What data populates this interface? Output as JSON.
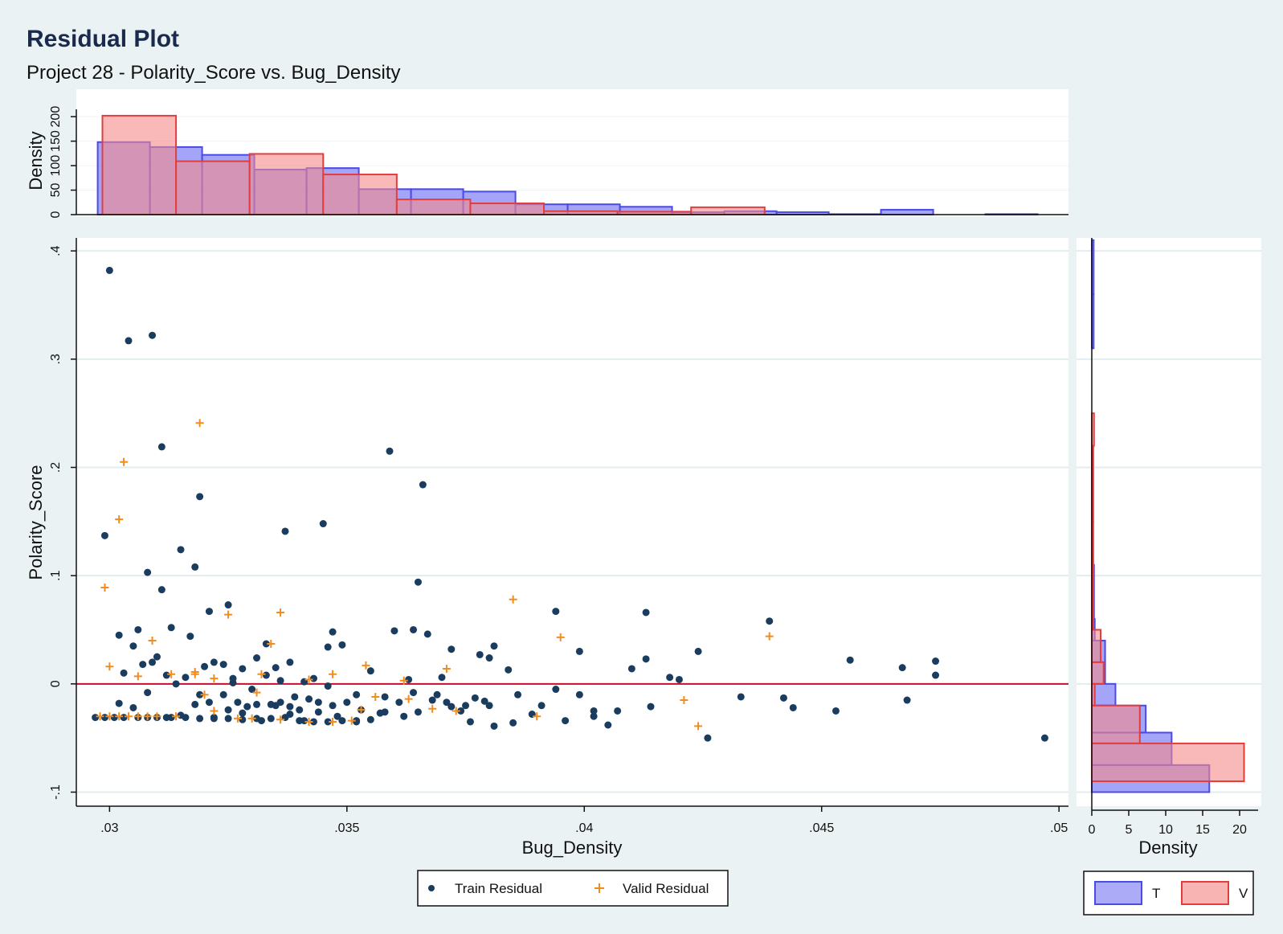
{
  "title": "Residual Plot",
  "subtitle": "Project 28 - Polarity_Score vs. Bug_Density",
  "colors": {
    "background": "#eaf2f3",
    "train_point": "#1a3c5e",
    "valid_point": "#f28c1e",
    "hist_train_fill": "#7e7ef5",
    "hist_train_edge": "#4b4be6",
    "hist_valid_fill": "#f58a8a",
    "hist_valid_edge": "#e23e3e",
    "zero_line": "#c8102e"
  },
  "chart_data": {
    "type": "scatter",
    "title": "Residual Plot",
    "subtitle": "Project 28 - Polarity_Score vs. Bug_Density",
    "xlabel": "Bug_Density",
    "ylabel": "Polarity_Score",
    "xlim": [
      0.0293,
      0.0502
    ],
    "ylim": [
      -0.113,
      0.412
    ],
    "x_ticks": [
      0.03,
      0.035,
      0.04,
      0.045,
      0.05
    ],
    "x_tick_labels": [
      ".03",
      ".035",
      ".04",
      ".045",
      ".05"
    ],
    "y_ticks": [
      -0.1,
      0,
      0.1,
      0.2,
      0.3,
      0.4
    ],
    "y_tick_labels": [
      "-.1",
      "0",
      ".1",
      ".2",
      ".3",
      ".4"
    ],
    "grid": true,
    "reference_line_y": 0,
    "series": [
      {
        "name": "Train Residual",
        "marker": "circle",
        "points": [
          [
            0.03,
            0.382
          ],
          [
            0.0304,
            0.317
          ],
          [
            0.0309,
            0.322
          ],
          [
            0.0311,
            0.219
          ],
          [
            0.0319,
            0.173
          ],
          [
            0.0299,
            0.137
          ],
          [
            0.0315,
            0.124
          ],
          [
            0.0318,
            0.108
          ],
          [
            0.0308,
            0.103
          ],
          [
            0.0311,
            0.087
          ],
          [
            0.0359,
            0.215
          ],
          [
            0.0366,
            0.184
          ],
          [
            0.0345,
            0.148
          ],
          [
            0.0337,
            0.141
          ],
          [
            0.0365,
            0.094
          ],
          [
            0.0325,
            0.073
          ],
          [
            0.0321,
            0.067
          ],
          [
            0.0306,
            0.05
          ],
          [
            0.0302,
            0.045
          ],
          [
            0.0313,
            0.052
          ],
          [
            0.0317,
            0.044
          ],
          [
            0.031,
            0.025
          ],
          [
            0.0305,
            0.035
          ],
          [
            0.0303,
            0.01
          ],
          [
            0.0307,
            0.018
          ],
          [
            0.0309,
            0.02
          ],
          [
            0.0312,
            0.008
          ],
          [
            0.0314,
            0.0
          ],
          [
            0.0316,
            0.006
          ],
          [
            0.032,
            0.016
          ],
          [
            0.0322,
            0.02
          ],
          [
            0.0324,
            0.018
          ],
          [
            0.0326,
            0.001
          ],
          [
            0.0328,
            0.014
          ],
          [
            0.0331,
            0.024
          ],
          [
            0.0333,
            0.037
          ],
          [
            0.0335,
            0.015
          ],
          [
            0.0338,
            0.02
          ],
          [
            0.0341,
            0.002
          ],
          [
            0.0343,
            0.005
          ],
          [
            0.0346,
            0.034
          ],
          [
            0.0347,
            0.048
          ],
          [
            0.0349,
            0.036
          ],
          [
            0.0346,
            -0.002
          ],
          [
            0.0352,
            -0.01
          ],
          [
            0.0355,
            0.012
          ],
          [
            0.0358,
            -0.012
          ],
          [
            0.036,
            0.049
          ],
          [
            0.0363,
            0.004
          ],
          [
            0.0364,
            0.05
          ],
          [
            0.0367,
            0.046
          ],
          [
            0.037,
            0.006
          ],
          [
            0.0372,
            0.032
          ],
          [
            0.0375,
            -0.02
          ],
          [
            0.0378,
            0.027
          ],
          [
            0.038,
            0.024
          ],
          [
            0.0381,
            0.035
          ],
          [
            0.0384,
            0.013
          ],
          [
            0.038,
            -0.02
          ],
          [
            0.0394,
            0.067
          ],
          [
            0.0399,
            0.03
          ],
          [
            0.0399,
            -0.01
          ],
          [
            0.0413,
            0.066
          ],
          [
            0.0413,
            0.023
          ],
          [
            0.041,
            0.014
          ],
          [
            0.0424,
            0.03
          ],
          [
            0.042,
            0.004
          ],
          [
            0.0439,
            0.058
          ],
          [
            0.0456,
            0.022
          ],
          [
            0.0467,
            0.015
          ],
          [
            0.0474,
            0.021
          ],
          [
            0.0474,
            0.008
          ],
          [
            0.0433,
            -0.012
          ],
          [
            0.0442,
            -0.013
          ],
          [
            0.0444,
            -0.022
          ],
          [
            0.0453,
            -0.025
          ],
          [
            0.0468,
            -0.015
          ],
          [
            0.0414,
            -0.021
          ],
          [
            0.0407,
            -0.025
          ],
          [
            0.0402,
            -0.03
          ],
          [
            0.0405,
            -0.038
          ],
          [
            0.0396,
            -0.034
          ],
          [
            0.0389,
            -0.028
          ],
          [
            0.0385,
            -0.036
          ],
          [
            0.0381,
            -0.039
          ],
          [
            0.0376,
            -0.035
          ],
          [
            0.0372,
            -0.021
          ],
          [
            0.0369,
            -0.01
          ],
          [
            0.0365,
            -0.026
          ],
          [
            0.0362,
            -0.03
          ],
          [
            0.0358,
            -0.026
          ],
          [
            0.0355,
            -0.033
          ],
          [
            0.0352,
            -0.035
          ],
          [
            0.0348,
            -0.03
          ],
          [
            0.0344,
            -0.026
          ],
          [
            0.0341,
            -0.034
          ],
          [
            0.0338,
            -0.028
          ],
          [
            0.0335,
            -0.02
          ],
          [
            0.0332,
            -0.034
          ],
          [
            0.0328,
            -0.027
          ],
          [
            0.0325,
            -0.024
          ],
          [
            0.0322,
            -0.031
          ],
          [
            0.0318,
            -0.019
          ],
          [
            0.0315,
            -0.029
          ],
          [
            0.0312,
            -0.031
          ],
          [
            0.0308,
            -0.008
          ],
          [
            0.0305,
            -0.022
          ],
          [
            0.0302,
            -0.018
          ],
          [
            0.0297,
            -0.031
          ],
          [
            0.0299,
            -0.031
          ],
          [
            0.0301,
            -0.031
          ],
          [
            0.0303,
            -0.031
          ],
          [
            0.0306,
            -0.031
          ],
          [
            0.0308,
            -0.031
          ],
          [
            0.031,
            -0.031
          ],
          [
            0.0313,
            -0.031
          ],
          [
            0.0316,
            -0.031
          ],
          [
            0.0319,
            -0.032
          ],
          [
            0.0322,
            -0.032
          ],
          [
            0.0325,
            -0.032
          ],
          [
            0.0328,
            -0.033
          ],
          [
            0.0331,
            -0.032
          ],
          [
            0.0334,
            -0.032
          ],
          [
            0.0337,
            -0.031
          ],
          [
            0.034,
            -0.034
          ],
          [
            0.0343,
            -0.035
          ],
          [
            0.0346,
            -0.035
          ],
          [
            0.0349,
            -0.034
          ],
          [
            0.0352,
            -0.034
          ],
          [
            0.0326,
            0.005
          ],
          [
            0.033,
            -0.005
          ],
          [
            0.0333,
            0.008
          ],
          [
            0.0336,
            0.003
          ],
          [
            0.0339,
            -0.012
          ],
          [
            0.0342,
            -0.014
          ],
          [
            0.0319,
            -0.01
          ],
          [
            0.0321,
            -0.017
          ],
          [
            0.0324,
            -0.01
          ],
          [
            0.0327,
            -0.017
          ],
          [
            0.0329,
            -0.021
          ],
          [
            0.0331,
            -0.019
          ],
          [
            0.0334,
            -0.019
          ],
          [
            0.0336,
            -0.017
          ],
          [
            0.0338,
            -0.021
          ],
          [
            0.034,
            -0.024
          ],
          [
            0.0344,
            -0.017
          ],
          [
            0.0347,
            -0.02
          ],
          [
            0.035,
            -0.017
          ],
          [
            0.0353,
            -0.024
          ],
          [
            0.0357,
            -0.027
          ],
          [
            0.0361,
            -0.017
          ],
          [
            0.0364,
            -0.008
          ],
          [
            0.0368,
            -0.015
          ],
          [
            0.0371,
            -0.017
          ],
          [
            0.0374,
            -0.025
          ],
          [
            0.0377,
            -0.013
          ],
          [
            0.0379,
            -0.016
          ],
          [
            0.0386,
            -0.01
          ],
          [
            0.0391,
            -0.02
          ],
          [
            0.0394,
            -0.005
          ],
          [
            0.0402,
            -0.025
          ],
          [
            0.0418,
            0.006
          ],
          [
            0.0426,
            -0.05
          ],
          [
            0.0497,
            -0.05
          ]
        ]
      },
      {
        "name": "Valid Residual",
        "marker": "plus",
        "points": [
          [
            0.0319,
            0.241
          ],
          [
            0.0303,
            0.205
          ],
          [
            0.0302,
            0.152
          ],
          [
            0.0299,
            0.089
          ],
          [
            0.0325,
            0.064
          ],
          [
            0.0336,
            0.066
          ],
          [
            0.0385,
            0.078
          ],
          [
            0.0395,
            0.043
          ],
          [
            0.0439,
            0.044
          ],
          [
            0.0309,
            0.04
          ],
          [
            0.0334,
            0.037
          ],
          [
            0.03,
            0.016
          ],
          [
            0.0354,
            0.017
          ],
          [
            0.0371,
            0.014
          ],
          [
            0.0306,
            0.007
          ],
          [
            0.0313,
            0.009
          ],
          [
            0.0318,
            0.009
          ],
          [
            0.0332,
            0.009
          ],
          [
            0.0347,
            0.009
          ],
          [
            0.0322,
            0.005
          ],
          [
            0.0342,
            0.004
          ],
          [
            0.0362,
            0.003
          ],
          [
            0.0331,
            -0.008
          ],
          [
            0.0356,
            -0.012
          ],
          [
            0.0363,
            -0.014
          ],
          [
            0.0421,
            -0.015
          ],
          [
            0.0353,
            -0.024
          ],
          [
            0.0368,
            -0.023
          ],
          [
            0.0373,
            -0.025
          ],
          [
            0.039,
            -0.03
          ],
          [
            0.0424,
            -0.039
          ],
          [
            0.0298,
            -0.03
          ],
          [
            0.03,
            -0.03
          ],
          [
            0.0302,
            -0.03
          ],
          [
            0.0304,
            -0.03
          ],
          [
            0.0306,
            -0.03
          ],
          [
            0.0308,
            -0.03
          ],
          [
            0.031,
            -0.03
          ],
          [
            0.0314,
            -0.03
          ],
          [
            0.0322,
            -0.025
          ],
          [
            0.0327,
            -0.032
          ],
          [
            0.033,
            -0.032
          ],
          [
            0.0336,
            -0.033
          ],
          [
            0.0342,
            -0.035
          ],
          [
            0.0347,
            -0.035
          ],
          [
            0.0351,
            -0.034
          ],
          [
            0.0318,
            0.011
          ],
          [
            0.032,
            -0.01
          ]
        ]
      }
    ],
    "top_histogram": {
      "ylabel": "Density",
      "y_ticks": [
        0,
        50,
        100,
        150,
        200
      ],
      "ylim": [
        0,
        215
      ],
      "train": [
        [
          0.02975,
          0.03085,
          148
        ],
        [
          0.03085,
          0.03195,
          138
        ],
        [
          0.03195,
          0.03305,
          122
        ],
        [
          0.03305,
          0.03415,
          92
        ],
        [
          0.03415,
          0.03525,
          95
        ],
        [
          0.03525,
          0.03635,
          52
        ],
        [
          0.03635,
          0.03745,
          52
        ],
        [
          0.03745,
          0.03855,
          47
        ],
        [
          0.03855,
          0.03965,
          21
        ],
        [
          0.03965,
          0.04075,
          21
        ],
        [
          0.04075,
          0.04185,
          16
        ],
        [
          0.04185,
          0.04295,
          5
        ],
        [
          0.04295,
          0.04405,
          7
        ],
        [
          0.04405,
          0.04515,
          5
        ],
        [
          0.04515,
          0.04625,
          1
        ],
        [
          0.04625,
          0.04735,
          10
        ],
        [
          0.04735,
          0.04845,
          0
        ],
        [
          0.04845,
          0.04955,
          1
        ]
      ],
      "valid": [
        [
          0.02985,
          0.0314,
          202
        ],
        [
          0.0314,
          0.03295,
          109
        ],
        [
          0.03295,
          0.0345,
          124
        ],
        [
          0.0345,
          0.03605,
          82
        ],
        [
          0.03605,
          0.0376,
          31
        ],
        [
          0.0376,
          0.03915,
          23
        ],
        [
          0.03915,
          0.0407,
          7
        ],
        [
          0.0407,
          0.04225,
          6
        ],
        [
          0.04225,
          0.0438,
          15
        ]
      ]
    },
    "right_histogram": {
      "xlabel": "Density",
      "x_ticks": [
        0,
        5,
        10,
        15,
        20
      ],
      "xlim": [
        0,
        22.5
      ],
      "train": [
        [
          0.36,
          0.41,
          0.25
        ],
        [
          0.31,
          0.36,
          0.25
        ],
        [
          0.26,
          0.31,
          0.0
        ],
        [
          0.21,
          0.26,
          0.0
        ],
        [
          0.16,
          0.21,
          0.0
        ],
        [
          0.11,
          0.16,
          0.0
        ],
        [
          0.06,
          0.11,
          0.3
        ],
        [
          0.04,
          0.06,
          0.4
        ],
        [
          0.02,
          0.04,
          1.8
        ],
        [
          0.0,
          0.02,
          1.8
        ],
        [
          -0.02,
          0.0,
          3.2
        ],
        [
          -0.045,
          -0.02,
          7.3
        ],
        [
          -0.075,
          -0.045,
          10.8
        ],
        [
          -0.1,
          -0.075,
          15.9
        ]
      ],
      "valid": [
        [
          0.22,
          0.25,
          0.3
        ],
        [
          0.15,
          0.22,
          0.2
        ],
        [
          0.09,
          0.15,
          0.2
        ],
        [
          0.05,
          0.09,
          0.2
        ],
        [
          0.02,
          0.05,
          1.2
        ],
        [
          0.0,
          0.02,
          1.6
        ],
        [
          -0.02,
          0.0,
          0.4
        ],
        [
          -0.055,
          -0.02,
          6.5
        ],
        [
          -0.09,
          -0.055,
          20.6
        ]
      ]
    },
    "legends": {
      "scatter": [
        "Train Residual",
        "Valid Residual"
      ],
      "histogram": [
        "T",
        "V"
      ]
    }
  }
}
